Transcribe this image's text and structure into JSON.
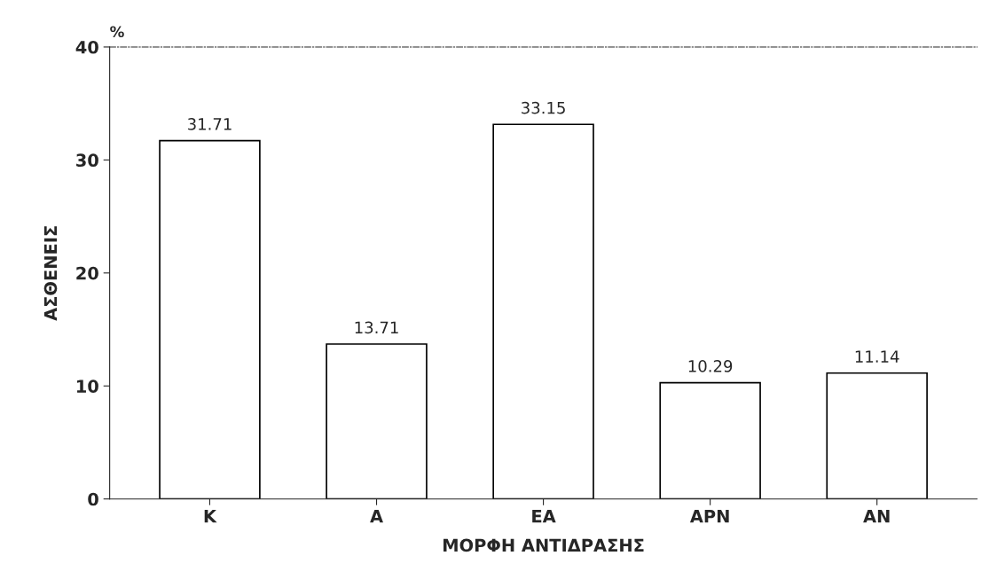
{
  "chart_data": {
    "type": "bar",
    "xlabel": "ΜΟΡΦΗ ΑΝΤΙΔΡΑΣΗΣ",
    "ylabel": "ΑΣΘΕΝΕΙΣ",
    "annotations": [
      "%"
    ],
    "categories": [
      "Κ",
      "Α",
      "ΕΑ",
      "ΑΡΝ",
      "ΑΝ"
    ],
    "values": [
      31.71,
      13.71,
      33.15,
      10.29,
      11.14
    ],
    "color": "#ffffff",
    "ylim": [
      0,
      40
    ],
    "yticks": [
      0,
      10,
      20,
      30,
      40
    ],
    "data_labels": true,
    "grid": false,
    "legend": false
  }
}
